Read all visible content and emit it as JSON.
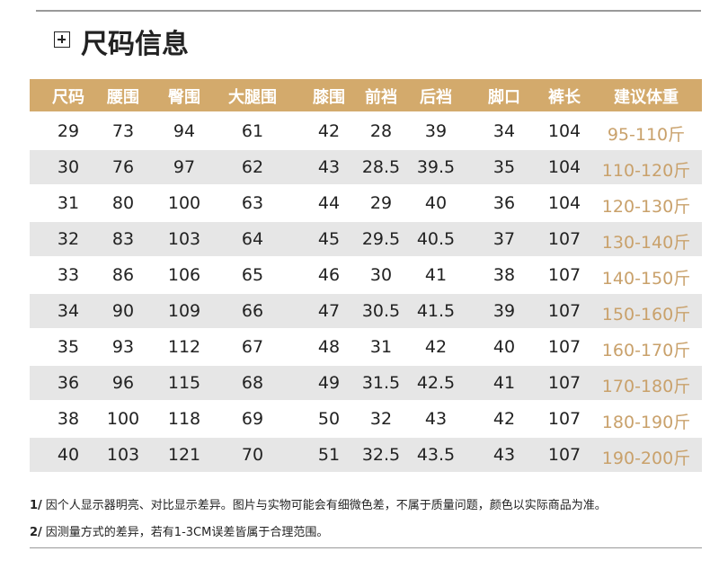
{
  "header": {
    "title": "尺码信息"
  },
  "table": {
    "columns": [
      "尺码",
      "腰围",
      "臀围",
      "大腿围",
      "膝围",
      "前裆",
      "后裆",
      "脚口",
      "裤长",
      "建议体重"
    ],
    "rows": [
      [
        "29",
        "73",
        "94",
        "61",
        "42",
        "28",
        "39",
        "34",
        "104",
        "95-110斤"
      ],
      [
        "30",
        "76",
        "97",
        "62",
        "43",
        "28.5",
        "39.5",
        "35",
        "104",
        "110-120斤"
      ],
      [
        "31",
        "80",
        "100",
        "63",
        "44",
        "29",
        "40",
        "36",
        "104",
        "120-130斤"
      ],
      [
        "32",
        "83",
        "103",
        "64",
        "45",
        "29.5",
        "40.5",
        "37",
        "107",
        "130-140斤"
      ],
      [
        "33",
        "86",
        "106",
        "65",
        "46",
        "30",
        "41",
        "38",
        "107",
        "140-150斤"
      ],
      [
        "34",
        "90",
        "109",
        "66",
        "47",
        "30.5",
        "41.5",
        "39",
        "107",
        "150-160斤"
      ],
      [
        "35",
        "93",
        "112",
        "67",
        "48",
        "31",
        "42",
        "40",
        "107",
        "160-170斤"
      ],
      [
        "36",
        "96",
        "115",
        "68",
        "49",
        "31.5",
        "42.5",
        "41",
        "107",
        "170-180斤"
      ],
      [
        "38",
        "100",
        "118",
        "69",
        "50",
        "32",
        "43",
        "42",
        "107",
        "180-190斤"
      ],
      [
        "40",
        "103",
        "121",
        "70",
        "51",
        "32.5",
        "43.5",
        "43",
        "107",
        "190-200斤"
      ]
    ]
  },
  "notes": [
    {
      "num": "1/",
      "text": "因个人显示器明亮、对比显示差异。图片与实物可能会有细微色差，不属于质量问题，颜色以实际商品为准。"
    },
    {
      "num": "2/",
      "text": "因测量方式的差异，若有1-3CM误差皆属于合理范围。"
    }
  ]
}
